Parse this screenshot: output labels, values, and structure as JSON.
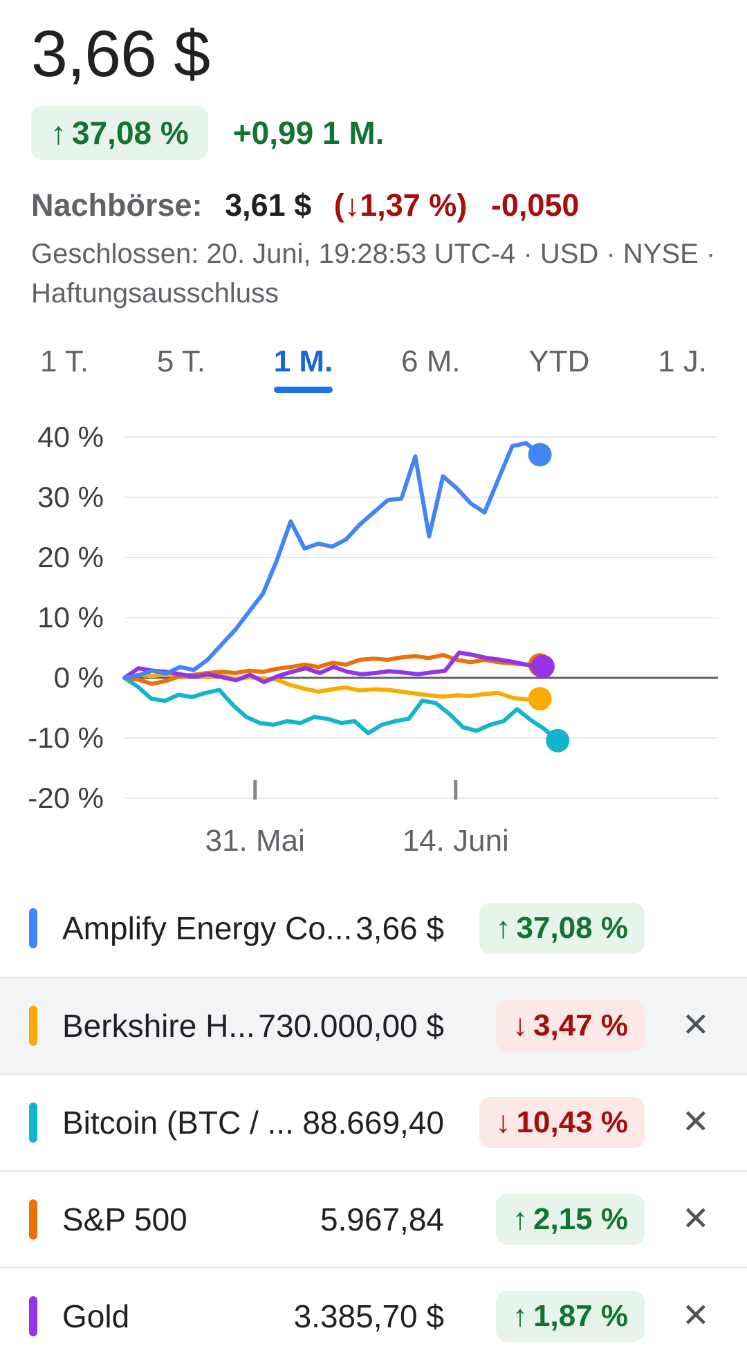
{
  "icons": {
    "up_arrow": "↑",
    "down_arrow": "↓",
    "close": "✕"
  },
  "colors": {
    "positive": "#137333",
    "positive_bg": "#e6f4ea",
    "negative": "#a50e0e",
    "negative_bg": "#fce8e6",
    "active_tab": "#1967d2"
  },
  "header": {
    "price": "3,66 $",
    "change_pct": "37,08 %",
    "change_abs": "+0,99 1 M.",
    "after_hours": {
      "label": "Nachbörse:",
      "price": "3,61 $",
      "pct": "(↓1,37 %)",
      "abs": "-0,050"
    },
    "status_text": "Geschlossen: 20. Juni, 19:28:53 UTC-4 · USD · NYSE ·",
    "disclaimer": "Haftungsausschluss"
  },
  "tabs": [
    {
      "label": "1 T.",
      "active": false
    },
    {
      "label": "5 T.",
      "active": false
    },
    {
      "label": "1 M.",
      "active": true
    },
    {
      "label": "6 M.",
      "active": false
    },
    {
      "label": "YTD",
      "active": false
    },
    {
      "label": "1 J.",
      "active": false
    }
  ],
  "chart_data": {
    "type": "line",
    "unit": "%",
    "ylim": [
      -20,
      40
    ],
    "grid": true,
    "y_ticks": [
      {
        "value": 40,
        "label": "40 %"
      },
      {
        "value": 30,
        "label": "30 %"
      },
      {
        "value": 20,
        "label": "20 %"
      },
      {
        "value": 10,
        "label": "10 %"
      },
      {
        "value": 0,
        "label": "0 %"
      },
      {
        "value": -10,
        "label": "-10 %"
      },
      {
        "value": -20,
        "label": "-20 %"
      }
    ],
    "x_ticks": [
      {
        "label": "31. Mai",
        "pos": 0.22
      },
      {
        "label": "14. Juni",
        "pos": 0.558
      }
    ],
    "series": [
      {
        "name": "Berkshire H...",
        "slug": "berkshire",
        "color": "#F9AB00",
        "x_end": 0.7,
        "values": [
          0,
          0.5,
          0.3,
          0.6,
          0.2,
          0.4,
          0.1,
          0.3,
          -0.2,
          0.1,
          -0.1,
          -0.3,
          -1.2,
          -1.8,
          -2.3,
          -1.9,
          -1.6,
          -2.1,
          -1.9,
          -2.0,
          -2.3,
          -2.6,
          -2.9,
          -3.1,
          -2.9,
          -3.0,
          -2.7,
          -2.5,
          -3.3,
          -3.6,
          -3.47
        ]
      },
      {
        "name": "Bitcoin (BTC / ...",
        "slug": "bitcoin",
        "color": "#12B5CB",
        "x_end": 0.73,
        "values": [
          0,
          -1.5,
          -3.5,
          -3.8,
          -2.8,
          -3.2,
          -2.5,
          -2.0,
          -4.5,
          -6.5,
          -7.5,
          -7.8,
          -7.2,
          -7.5,
          -6.5,
          -6.8,
          -7.5,
          -7.2,
          -9.2,
          -7.8,
          -7.2,
          -6.8,
          -3.8,
          -4.2,
          -6.0,
          -8.2,
          -8.8,
          -7.8,
          -7.2,
          -5.2,
          -7.0,
          -8.5,
          -10.43
        ]
      },
      {
        "name": "S&P 500",
        "slug": "sp500",
        "color": "#E8710A",
        "x_end": 0.7,
        "values": [
          0,
          -0.3,
          -1.0,
          -0.5,
          0.3,
          0.5,
          0.8,
          1.0,
          0.8,
          1.2,
          1.0,
          1.5,
          1.8,
          2.2,
          1.8,
          2.5,
          2.2,
          3.0,
          3.2,
          3.0,
          3.4,
          3.6,
          3.3,
          3.8,
          3.0,
          2.6,
          3.0,
          2.6,
          2.4,
          2.2,
          2.15
        ]
      },
      {
        "name": "Gold",
        "slug": "gold",
        "color": "#9334E6",
        "x_end": 0.705,
        "values": [
          0,
          1.6,
          1.2,
          1.0,
          0.6,
          0.2,
          0.6,
          0.1,
          -0.4,
          0.5,
          -0.7,
          0.3,
          1.0,
          1.6,
          0.8,
          1.8,
          1.0,
          0.6,
          0.8,
          1.1,
          0.9,
          0.6,
          0.9,
          1.2,
          4.2,
          3.8,
          3.3,
          3.0,
          2.6,
          2.1,
          1.87
        ]
      },
      {
        "name": "Amplify Energy Co...",
        "slug": "amplify",
        "color": "#4285F4",
        "x_end": 0.7,
        "values": [
          0,
          0.4,
          1.2,
          0.7,
          1.8,
          1.3,
          3.0,
          5.5,
          8.0,
          11.0,
          14.0,
          19.5,
          26.0,
          21.5,
          22.3,
          21.8,
          23.0,
          25.5,
          27.5,
          29.5,
          29.8,
          36.8,
          23.5,
          33.5,
          31.5,
          29.0,
          27.5,
          33.0,
          38.5,
          39.0,
          37.08
        ]
      }
    ]
  },
  "legend": [
    {
      "name": "Amplify Energy Co...",
      "value": "3,66 $",
      "pct": "37,08 %",
      "direction": "up",
      "color": "#4285F4",
      "removable": false,
      "highlighted": false
    },
    {
      "name": "Berkshire H...",
      "value": "730.000,00 $",
      "pct": "3,47 %",
      "direction": "down",
      "color": "#F9AB00",
      "removable": true,
      "highlighted": true
    },
    {
      "name": "Bitcoin (BTC / ...",
      "value": "88.669,40",
      "pct": "10,43 %",
      "direction": "down",
      "color": "#12B5CB",
      "removable": true,
      "highlighted": false
    },
    {
      "name": "S&P 500",
      "value": "5.967,84",
      "pct": "2,15 %",
      "direction": "up",
      "color": "#E8710A",
      "removable": true,
      "highlighted": false
    },
    {
      "name": "Gold",
      "value": "3.385,70 $",
      "pct": "1,87 %",
      "direction": "up",
      "color": "#9334E6",
      "removable": true,
      "highlighted": false
    }
  ]
}
